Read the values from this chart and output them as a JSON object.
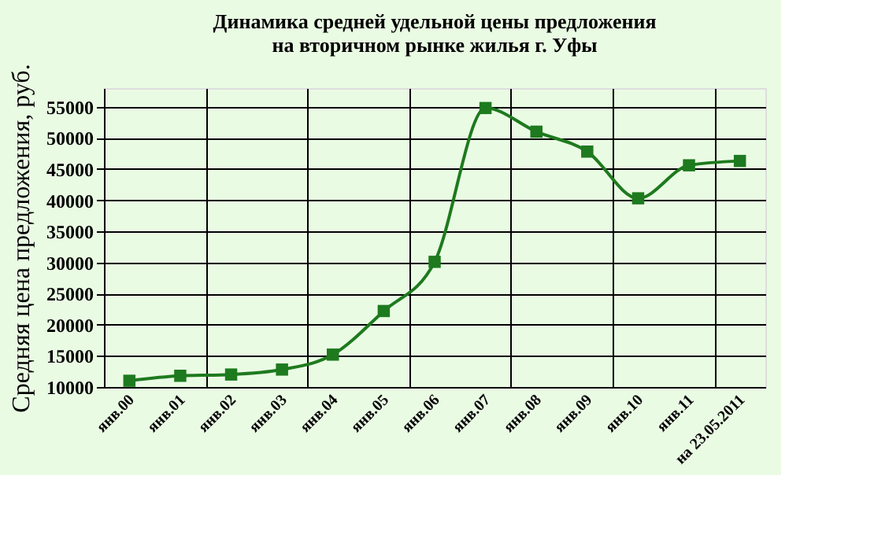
{
  "chart_data": {
    "type": "line",
    "title": [
      "Динамика средней удельной цены предложения",
      "на вторичном рынке жилья г. Уфы"
    ],
    "ylabel": "Средняя цена предложения, руб.",
    "categories": [
      "янв.00",
      "янв.01",
      "янв.02",
      "янв.03",
      "янв.04",
      "янв.05",
      "янв.06",
      "янв.07",
      "янв.08",
      "янв.09",
      "янв.10",
      "янв.11",
      "на 23.05.2011"
    ],
    "series": [
      {
        "color": "#1e7a1e",
        "values": [
          11000,
          11800,
          12000,
          12800,
          15200,
          22200,
          30100,
          54800,
          51000,
          47800,
          40300,
          45600,
          46300
        ]
      }
    ],
    "ylim": [
      10000,
      58000
    ],
    "yticks": [
      10000,
      15000,
      20000,
      25000,
      30000,
      35000,
      40000,
      45000,
      50000,
      55000
    ],
    "grid": true,
    "legend": false,
    "marker": "square",
    "line_style": "solid"
  }
}
